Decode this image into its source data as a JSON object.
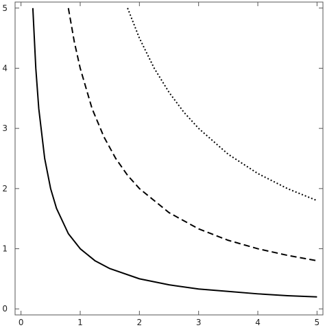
{
  "chart_data": {
    "type": "line",
    "title": "",
    "xlabel": "",
    "ylabel": "",
    "xlim": [
      -0.1,
      5.1
    ],
    "ylim": [
      -0.1,
      5.1
    ],
    "xticks": [
      0,
      1,
      2,
      3,
      4,
      5
    ],
    "yticks": [
      0,
      1,
      2,
      3,
      4,
      5
    ],
    "x_tick_labels": [
      "0",
      "1",
      "2",
      "3",
      "4",
      "5"
    ],
    "y_tick_labels": [
      "0",
      "1",
      "2",
      "3",
      "4",
      "5"
    ],
    "grid": false,
    "legend": "none",
    "series": [
      {
        "style": "solid",
        "color": "#000000",
        "x": [
          0.2,
          0.25,
          0.3,
          0.4,
          0.5,
          0.6,
          0.8,
          1.0,
          1.25,
          1.5,
          2.0,
          2.5,
          3.0,
          3.5,
          4.0,
          4.5,
          5.0
        ],
        "y": [
          5.0,
          4.0,
          3.33,
          2.5,
          2.0,
          1.67,
          1.25,
          1.0,
          0.8,
          0.67,
          0.5,
          0.4,
          0.33,
          0.29,
          0.25,
          0.22,
          0.2
        ]
      },
      {
        "style": "dashed",
        "color": "#000000",
        "x": [
          0.8,
          0.9,
          1.0,
          1.2,
          1.4,
          1.6,
          1.8,
          2.0,
          2.5,
          3.0,
          3.5,
          4.0,
          4.5,
          5.0
        ],
        "y": [
          5.0,
          4.44,
          4.0,
          3.33,
          2.86,
          2.5,
          2.22,
          2.0,
          1.6,
          1.33,
          1.14,
          1.0,
          0.89,
          0.8
        ]
      },
      {
        "style": "dotted",
        "color": "#000000",
        "x": [
          1.8,
          2.0,
          2.25,
          2.5,
          2.75,
          3.0,
          3.5,
          4.0,
          4.5,
          5.0
        ],
        "y": [
          5.0,
          4.5,
          4.0,
          3.6,
          3.27,
          3.0,
          2.57,
          2.25,
          2.0,
          1.8
        ]
      }
    ]
  }
}
